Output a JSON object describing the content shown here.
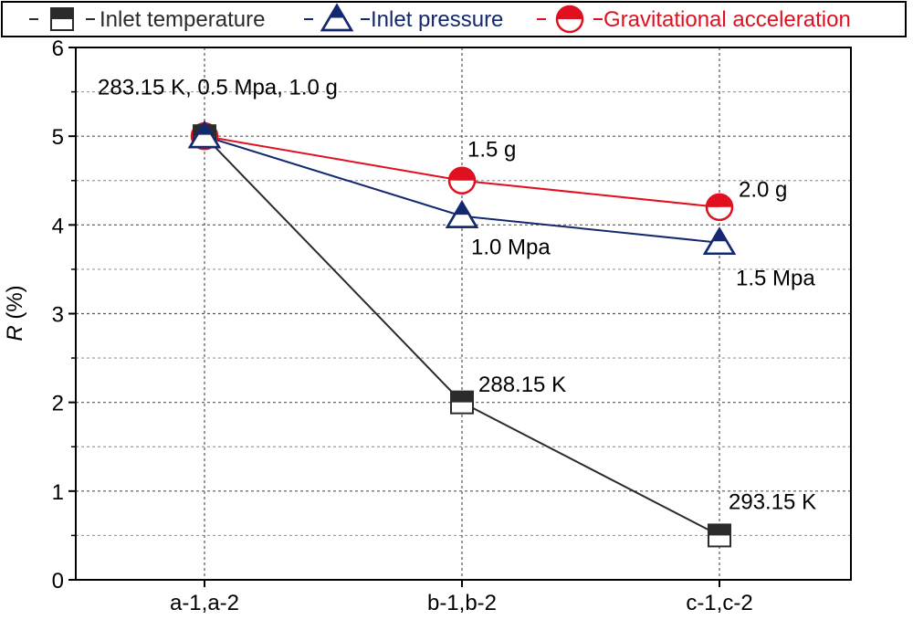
{
  "chart_data": {
    "type": "line",
    "title": "",
    "xlabel": "",
    "ylabel": {
      "var": "R",
      "unit": " (%)"
    },
    "categories": [
      "a-1,a-2",
      "b-1,b-2",
      "c-1,c-2"
    ],
    "ylim": [
      0,
      6
    ],
    "yticks": [
      "0",
      "1",
      "2",
      "3",
      "4",
      "5",
      "6"
    ],
    "grid": true,
    "legend_position": "top",
    "series": [
      {
        "name": "Inlet temperature",
        "marker": "square",
        "color": "#2b2b2b",
        "values": [
          5.0,
          2.0,
          0.5
        ]
      },
      {
        "name": "Inlet pressure",
        "marker": "triangle",
        "color": "#14286e",
        "values": [
          5.0,
          4.1,
          3.8
        ]
      },
      {
        "name": "Gravitational acceleration",
        "marker": "circle",
        "color": "#e01020",
        "values": [
          5.0,
          4.5,
          4.2
        ]
      }
    ],
    "annotations": [
      {
        "text": "283.15 K, 0.5 Mpa, 1.0 g",
        "category": 0,
        "y": 5.55
      },
      {
        "text": "1.5 g",
        "category": 1,
        "y": 4.85
      },
      {
        "text": "1.0 Mpa",
        "category": 1,
        "y": 3.75
      },
      {
        "text": "2.0 g",
        "category": 2,
        "y": 4.4
      },
      {
        "text": "1.5 Mpa",
        "category": 2,
        "y": 3.4
      },
      {
        "text": "288.15 K",
        "category": 1,
        "y": 2.2
      },
      {
        "text": "293.15 K",
        "category": 2,
        "y": 0.88
      }
    ]
  }
}
